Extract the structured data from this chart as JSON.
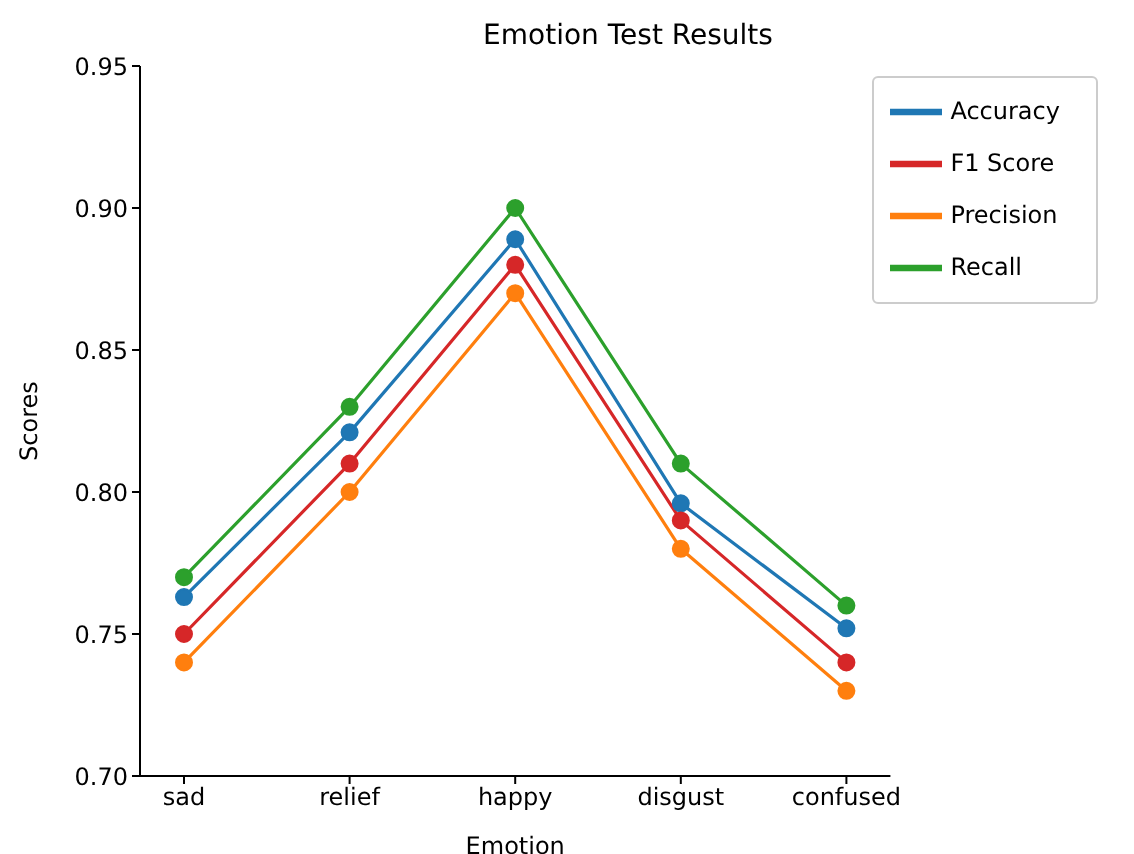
{
  "chart_data": {
    "type": "line",
    "title": "Emotion Test Results",
    "xlabel": "Emotion",
    "ylabel": "Scores",
    "categories": [
      "sad",
      "relief",
      "happy",
      "disgust",
      "confused"
    ],
    "series": [
      {
        "name": "Accuracy",
        "color": "#1f77b4",
        "values": [
          0.763,
          0.821,
          0.889,
          0.796,
          0.752
        ]
      },
      {
        "name": "Precision",
        "color": "#ff7f0e",
        "values": [
          0.74,
          0.8,
          0.87,
          0.78,
          0.73
        ]
      },
      {
        "name": "Recall",
        "color": "#2ca02c",
        "values": [
          0.77,
          0.83,
          0.9,
          0.81,
          0.76
        ]
      },
      {
        "name": "F1 Score",
        "color": "#d62728",
        "values": [
          0.75,
          0.81,
          0.88,
          0.79,
          0.74
        ]
      }
    ],
    "ylim": [
      0.7,
      0.95
    ],
    "yticks": [
      {
        "value": 0.7,
        "label": "0.70"
      },
      {
        "value": 0.75,
        "label": "0.75"
      },
      {
        "value": 0.8,
        "label": "0.80"
      },
      {
        "value": 0.85,
        "label": "0.85"
      },
      {
        "value": 0.9,
        "label": "0.90"
      },
      {
        "value": 0.95,
        "label": "0.95"
      }
    ],
    "legend": "top right",
    "marker": "circle",
    "line_style": "solid",
    "grid": false
  }
}
